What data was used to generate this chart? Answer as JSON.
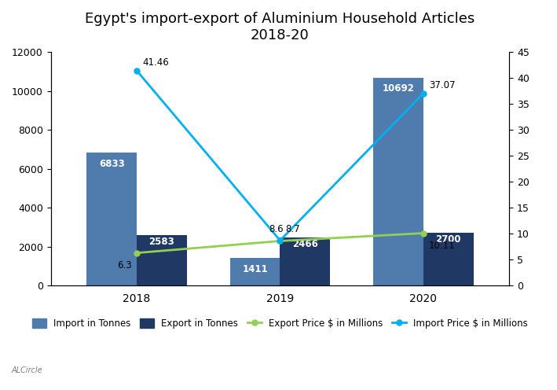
{
  "title": "Egypt's import-export of Aluminium Household Articles\n2018-20",
  "years": [
    "2018",
    "2019",
    "2020"
  ],
  "import_tonnes": [
    6833,
    1411,
    10692
  ],
  "export_tonnes": [
    2583,
    2466,
    2700
  ],
  "export_price": [
    6.3,
    8.6,
    10.11
  ],
  "import_price": [
    41.46,
    8.7,
    37.07
  ],
  "import_bar_color": "#4f7bad",
  "export_bar_color": "#1f3864",
  "export_line_color": "#92d050",
  "import_line_color": "#00b0f0",
  "bar_width": 0.35,
  "ylim_left": [
    0,
    12000
  ],
  "ylim_right": [
    0,
    45
  ],
  "yticks_left": [
    0,
    2000,
    4000,
    6000,
    8000,
    10000,
    12000
  ],
  "yticks_right": [
    0,
    5,
    10,
    15,
    20,
    25,
    30,
    35,
    40,
    45
  ],
  "legend_labels": [
    "Import in Tonnes",
    "Export in Tonnes",
    "Export Price $ in Millions",
    "Import Price $ in Millions"
  ],
  "watermark": "ALCircle"
}
